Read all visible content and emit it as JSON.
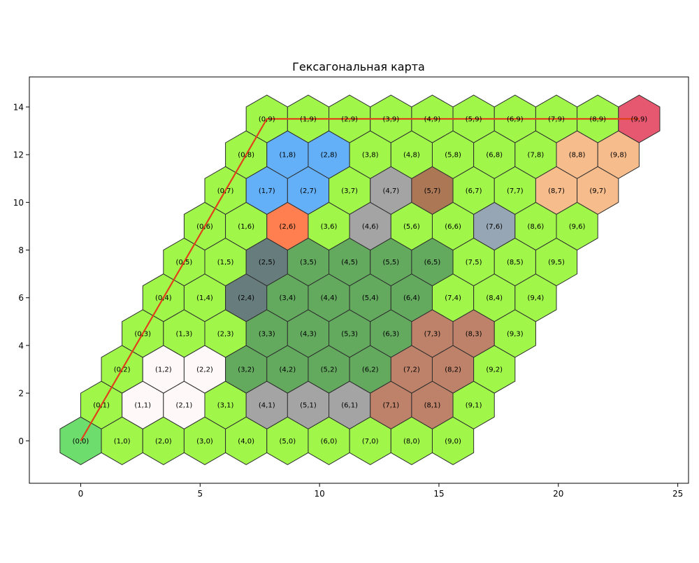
{
  "chart_data": {
    "type": "hexmap",
    "title": "Гексагональная карта",
    "xlim": [
      -2.15,
      25.45
    ],
    "ylim": [
      -1.78,
      15.26
    ],
    "xticks": [
      0,
      5,
      10,
      15,
      20,
      25
    ],
    "yticks": [
      0,
      2,
      4,
      6,
      8,
      10,
      12,
      14
    ],
    "grid": false,
    "hex_size": 1,
    "grid_cols": 10,
    "grid_rows": 10,
    "terrain_colors": {
      "grass": "#a0f74a",
      "start": "#6dde6d",
      "snow": "#fff8f8",
      "forest": "#63aa5f",
      "rock": "#a4a4a4",
      "water": "#63aff8",
      "mountain": "#677c7c",
      "fire": "#ff7f50",
      "desert": "#bd8269",
      "hill": "#ab7755",
      "slate": "#97a6b5",
      "sand": "#f7bc8c",
      "goal": "#e6586f"
    },
    "cells": [
      {
        "q": 0,
        "r": 0,
        "label": "(0,0)",
        "terrain": "start"
      },
      {
        "q": 1,
        "r": 0,
        "label": "(1,0)",
        "terrain": "grass"
      },
      {
        "q": 2,
        "r": 0,
        "label": "(2,0)",
        "terrain": "grass"
      },
      {
        "q": 3,
        "r": 0,
        "label": "(3,0)",
        "terrain": "grass"
      },
      {
        "q": 4,
        "r": 0,
        "label": "(4,0)",
        "terrain": "grass"
      },
      {
        "q": 5,
        "r": 0,
        "label": "(5,0)",
        "terrain": "grass"
      },
      {
        "q": 6,
        "r": 0,
        "label": "(6,0)",
        "terrain": "grass"
      },
      {
        "q": 7,
        "r": 0,
        "label": "(7,0)",
        "terrain": "grass"
      },
      {
        "q": 8,
        "r": 0,
        "label": "(8,0)",
        "terrain": "grass"
      },
      {
        "q": 9,
        "r": 0,
        "label": "(9,0)",
        "terrain": "grass"
      },
      {
        "q": 0,
        "r": 1,
        "label": "(0,1)",
        "terrain": "grass"
      },
      {
        "q": 1,
        "r": 1,
        "label": "(1,1)",
        "terrain": "snow"
      },
      {
        "q": 2,
        "r": 1,
        "label": "(2,1)",
        "terrain": "snow"
      },
      {
        "q": 3,
        "r": 1,
        "label": "(3,1)",
        "terrain": "grass"
      },
      {
        "q": 4,
        "r": 1,
        "label": "(4,1)",
        "terrain": "rock"
      },
      {
        "q": 5,
        "r": 1,
        "label": "(5,1)",
        "terrain": "rock"
      },
      {
        "q": 6,
        "r": 1,
        "label": "(6,1)",
        "terrain": "rock"
      },
      {
        "q": 7,
        "r": 1,
        "label": "(7,1)",
        "terrain": "desert"
      },
      {
        "q": 8,
        "r": 1,
        "label": "(8,1)",
        "terrain": "desert"
      },
      {
        "q": 9,
        "r": 1,
        "label": "(9,1)",
        "terrain": "grass"
      },
      {
        "q": 0,
        "r": 2,
        "label": "(0,2)",
        "terrain": "grass"
      },
      {
        "q": 1,
        "r": 2,
        "label": "(1,2)",
        "terrain": "snow"
      },
      {
        "q": 2,
        "r": 2,
        "label": "(2,2)",
        "terrain": "snow"
      },
      {
        "q": 3,
        "r": 2,
        "label": "(3,2)",
        "terrain": "forest"
      },
      {
        "q": 4,
        "r": 2,
        "label": "(4,2)",
        "terrain": "forest"
      },
      {
        "q": 5,
        "r": 2,
        "label": "(5,2)",
        "terrain": "forest"
      },
      {
        "q": 6,
        "r": 2,
        "label": "(6,2)",
        "terrain": "forest"
      },
      {
        "q": 7,
        "r": 2,
        "label": "(7,2)",
        "terrain": "desert"
      },
      {
        "q": 8,
        "r": 2,
        "label": "(8,2)",
        "terrain": "desert"
      },
      {
        "q": 9,
        "r": 2,
        "label": "(9,2)",
        "terrain": "grass"
      },
      {
        "q": 0,
        "r": 3,
        "label": "(0,3)",
        "terrain": "grass"
      },
      {
        "q": 1,
        "r": 3,
        "label": "(1,3)",
        "terrain": "grass"
      },
      {
        "q": 2,
        "r": 3,
        "label": "(2,3)",
        "terrain": "grass"
      },
      {
        "q": 3,
        "r": 3,
        "label": "(3,3)",
        "terrain": "forest"
      },
      {
        "q": 4,
        "r": 3,
        "label": "(4,3)",
        "terrain": "forest"
      },
      {
        "q": 5,
        "r": 3,
        "label": "(5,3)",
        "terrain": "forest"
      },
      {
        "q": 6,
        "r": 3,
        "label": "(6,3)",
        "terrain": "forest"
      },
      {
        "q": 7,
        "r": 3,
        "label": "(7,3)",
        "terrain": "desert"
      },
      {
        "q": 8,
        "r": 3,
        "label": "(8,3)",
        "terrain": "desert"
      },
      {
        "q": 9,
        "r": 3,
        "label": "(9,3)",
        "terrain": "grass"
      },
      {
        "q": 0,
        "r": 4,
        "label": "(0,4)",
        "terrain": "grass"
      },
      {
        "q": 1,
        "r": 4,
        "label": "(1,4)",
        "terrain": "grass"
      },
      {
        "q": 2,
        "r": 4,
        "label": "(2,4)",
        "terrain": "mountain"
      },
      {
        "q": 3,
        "r": 4,
        "label": "(3,4)",
        "terrain": "forest"
      },
      {
        "q": 4,
        "r": 4,
        "label": "(4,4)",
        "terrain": "forest"
      },
      {
        "q": 5,
        "r": 4,
        "label": "(5,4)",
        "terrain": "forest"
      },
      {
        "q": 6,
        "r": 4,
        "label": "(6,4)",
        "terrain": "forest"
      },
      {
        "q": 7,
        "r": 4,
        "label": "(7,4)",
        "terrain": "grass"
      },
      {
        "q": 8,
        "r": 4,
        "label": "(8,4)",
        "terrain": "grass"
      },
      {
        "q": 9,
        "r": 4,
        "label": "(9,4)",
        "terrain": "grass"
      },
      {
        "q": 0,
        "r": 5,
        "label": "(0,5)",
        "terrain": "grass"
      },
      {
        "q": 1,
        "r": 5,
        "label": "(1,5)",
        "terrain": "grass"
      },
      {
        "q": 2,
        "r": 5,
        "label": "(2,5)",
        "terrain": "mountain"
      },
      {
        "q": 3,
        "r": 5,
        "label": "(3,5)",
        "terrain": "forest"
      },
      {
        "q": 4,
        "r": 5,
        "label": "(4,5)",
        "terrain": "forest"
      },
      {
        "q": 5,
        "r": 5,
        "label": "(5,5)",
        "terrain": "forest"
      },
      {
        "q": 6,
        "r": 5,
        "label": "(6,5)",
        "terrain": "forest"
      },
      {
        "q": 7,
        "r": 5,
        "label": "(7,5)",
        "terrain": "grass"
      },
      {
        "q": 8,
        "r": 5,
        "label": "(8,5)",
        "terrain": "grass"
      },
      {
        "q": 9,
        "r": 5,
        "label": "(9,5)",
        "terrain": "grass"
      },
      {
        "q": 0,
        "r": 6,
        "label": "(0,6)",
        "terrain": "grass"
      },
      {
        "q": 1,
        "r": 6,
        "label": "(1,6)",
        "terrain": "grass"
      },
      {
        "q": 2,
        "r": 6,
        "label": "(2,6)",
        "terrain": "fire"
      },
      {
        "q": 3,
        "r": 6,
        "label": "(3,6)",
        "terrain": "grass"
      },
      {
        "q": 4,
        "r": 6,
        "label": "(4,6)",
        "terrain": "rock"
      },
      {
        "q": 5,
        "r": 6,
        "label": "(5,6)",
        "terrain": "grass"
      },
      {
        "q": 6,
        "r": 6,
        "label": "(6,6)",
        "terrain": "grass"
      },
      {
        "q": 7,
        "r": 6,
        "label": "(7,6)",
        "terrain": "slate"
      },
      {
        "q": 8,
        "r": 6,
        "label": "(8,6)",
        "terrain": "grass"
      },
      {
        "q": 9,
        "r": 6,
        "label": "(9,6)",
        "terrain": "grass"
      },
      {
        "q": 0,
        "r": 7,
        "label": "(0,7)",
        "terrain": "grass"
      },
      {
        "q": 1,
        "r": 7,
        "label": "(1,7)",
        "terrain": "water"
      },
      {
        "q": 2,
        "r": 7,
        "label": "(2,7)",
        "terrain": "water"
      },
      {
        "q": 3,
        "r": 7,
        "label": "(3,7)",
        "terrain": "grass"
      },
      {
        "q": 4,
        "r": 7,
        "label": "(4,7)",
        "terrain": "rock"
      },
      {
        "q": 5,
        "r": 7,
        "label": "(5,7)",
        "terrain": "hill"
      },
      {
        "q": 6,
        "r": 7,
        "label": "(6,7)",
        "terrain": "grass"
      },
      {
        "q": 7,
        "r": 7,
        "label": "(7,7)",
        "terrain": "grass"
      },
      {
        "q": 8,
        "r": 7,
        "label": "(8,7)",
        "terrain": "sand"
      },
      {
        "q": 9,
        "r": 7,
        "label": "(9,7)",
        "terrain": "sand"
      },
      {
        "q": 0,
        "r": 8,
        "label": "(0,8)",
        "terrain": "grass"
      },
      {
        "q": 1,
        "r": 8,
        "label": "(1,8)",
        "terrain": "water"
      },
      {
        "q": 2,
        "r": 8,
        "label": "(2,8)",
        "terrain": "water"
      },
      {
        "q": 3,
        "r": 8,
        "label": "(3,8)",
        "terrain": "grass"
      },
      {
        "q": 4,
        "r": 8,
        "label": "(4,8)",
        "terrain": "grass"
      },
      {
        "q": 5,
        "r": 8,
        "label": "(5,8)",
        "terrain": "grass"
      },
      {
        "q": 6,
        "r": 8,
        "label": "(6,8)",
        "terrain": "grass"
      },
      {
        "q": 7,
        "r": 8,
        "label": "(7,8)",
        "terrain": "grass"
      },
      {
        "q": 8,
        "r": 8,
        "label": "(8,8)",
        "terrain": "sand"
      },
      {
        "q": 9,
        "r": 8,
        "label": "(9,8)",
        "terrain": "sand"
      },
      {
        "q": 0,
        "r": 9,
        "label": "(0,9)",
        "terrain": "grass"
      },
      {
        "q": 1,
        "r": 9,
        "label": "(1,9)",
        "terrain": "grass"
      },
      {
        "q": 2,
        "r": 9,
        "label": "(2,9)",
        "terrain": "grass"
      },
      {
        "q": 3,
        "r": 9,
        "label": "(3,9)",
        "terrain": "grass"
      },
      {
        "q": 4,
        "r": 9,
        "label": "(4,9)",
        "terrain": "grass"
      },
      {
        "q": 5,
        "r": 9,
        "label": "(5,9)",
        "terrain": "grass"
      },
      {
        "q": 6,
        "r": 9,
        "label": "(6,9)",
        "terrain": "grass"
      },
      {
        "q": 7,
        "r": 9,
        "label": "(7,9)",
        "terrain": "grass"
      },
      {
        "q": 8,
        "r": 9,
        "label": "(8,9)",
        "terrain": "grass"
      },
      {
        "q": 9,
        "r": 9,
        "label": "(9,9)",
        "terrain": "goal"
      }
    ],
    "path": {
      "color": "#e0401a",
      "nodes": [
        [
          0,
          0
        ],
        [
          0,
          9
        ],
        [
          9,
          9
        ]
      ]
    }
  }
}
